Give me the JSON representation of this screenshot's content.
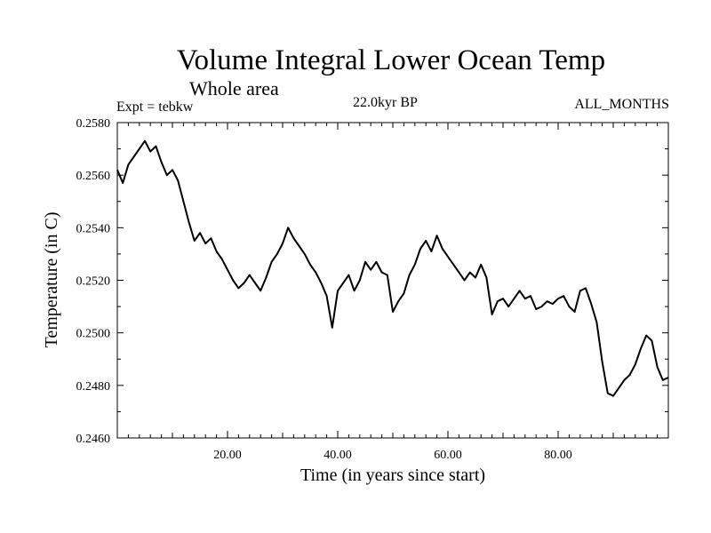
{
  "header": {
    "title": "Volume Integral Lower Ocean Temp",
    "subtitle": "Whole area",
    "experiment": "Expt = tebkw",
    "period": "22.0kyr BP",
    "months": "ALL_MONTHS"
  },
  "chart_data": {
    "type": "line",
    "title": "Volume Integral Lower Ocean Temp",
    "subtitle": "Whole area",
    "xlabel": "Time (in years since start)",
    "ylabel": "Temperature (in C)",
    "xlim": [
      0,
      100
    ],
    "ylim": [
      0.246,
      0.258
    ],
    "x_ticks": [
      20,
      40,
      60,
      80
    ],
    "x_tick_labels": [
      "20.00",
      "40.00",
      "60.00",
      "80.00"
    ],
    "y_ticks": [
      0.246,
      0.248,
      0.25,
      0.252,
      0.254,
      0.256,
      0.258
    ],
    "y_tick_labels": [
      "0.2460",
      "0.2480",
      "0.2500",
      "0.2520",
      "0.2540",
      "0.2560",
      "0.2580"
    ],
    "grid": false,
    "series": [
      {
        "name": "tebkw",
        "color": "#000000",
        "x": [
          0,
          1,
          2,
          3,
          4,
          5,
          6,
          7,
          8,
          9,
          10,
          11,
          12,
          13,
          14,
          15,
          16,
          17,
          18,
          19,
          20,
          21,
          22,
          23,
          24,
          25,
          26,
          27,
          28,
          29,
          30,
          31,
          32,
          33,
          34,
          35,
          36,
          37,
          38,
          39,
          40,
          41,
          42,
          43,
          44,
          45,
          46,
          47,
          48,
          49,
          50,
          51,
          52,
          53,
          54,
          55,
          56,
          57,
          58,
          59,
          60,
          61,
          62,
          63,
          64,
          65,
          66,
          67,
          68,
          69,
          70,
          71,
          72,
          73,
          74,
          75,
          76,
          77,
          78,
          79,
          80,
          81,
          82,
          83,
          84,
          85,
          86,
          87,
          88,
          89,
          90,
          91,
          92,
          93,
          94,
          95,
          96,
          97,
          98,
          99,
          100
        ],
        "y": [
          0.2562,
          0.2557,
          0.2564,
          0.2567,
          0.257,
          0.2573,
          0.2569,
          0.2571,
          0.2565,
          0.256,
          0.2562,
          0.2558,
          0.255,
          0.2542,
          0.2535,
          0.2538,
          0.2534,
          0.2536,
          0.2531,
          0.2528,
          0.2524,
          0.252,
          0.2517,
          0.2519,
          0.2522,
          0.2519,
          0.2516,
          0.2521,
          0.2527,
          0.253,
          0.2534,
          0.254,
          0.2536,
          0.2533,
          0.253,
          0.2526,
          0.2523,
          0.2519,
          0.2514,
          0.2502,
          0.2516,
          0.2519,
          0.2522,
          0.2516,
          0.252,
          0.2527,
          0.2524,
          0.2527,
          0.2523,
          0.2522,
          0.2508,
          0.2512,
          0.2515,
          0.2522,
          0.2526,
          0.2532,
          0.2535,
          0.2531,
          0.2537,
          0.2532,
          0.2529,
          0.2526,
          0.2523,
          0.252,
          0.2523,
          0.2521,
          0.2526,
          0.2521,
          0.2507,
          0.2512,
          0.2513,
          0.251,
          0.2513,
          0.2516,
          0.2513,
          0.2514,
          0.2509,
          0.251,
          0.2512,
          0.2511,
          0.2513,
          0.2514,
          0.251,
          0.2508,
          0.2516,
          0.2517,
          0.2511,
          0.2504,
          0.2489,
          0.2477,
          0.2476,
          0.2479,
          0.2482,
          0.2484,
          0.2488,
          0.2494,
          0.2499,
          0.2497,
          0.2487,
          0.2482,
          0.2483
        ]
      }
    ]
  }
}
